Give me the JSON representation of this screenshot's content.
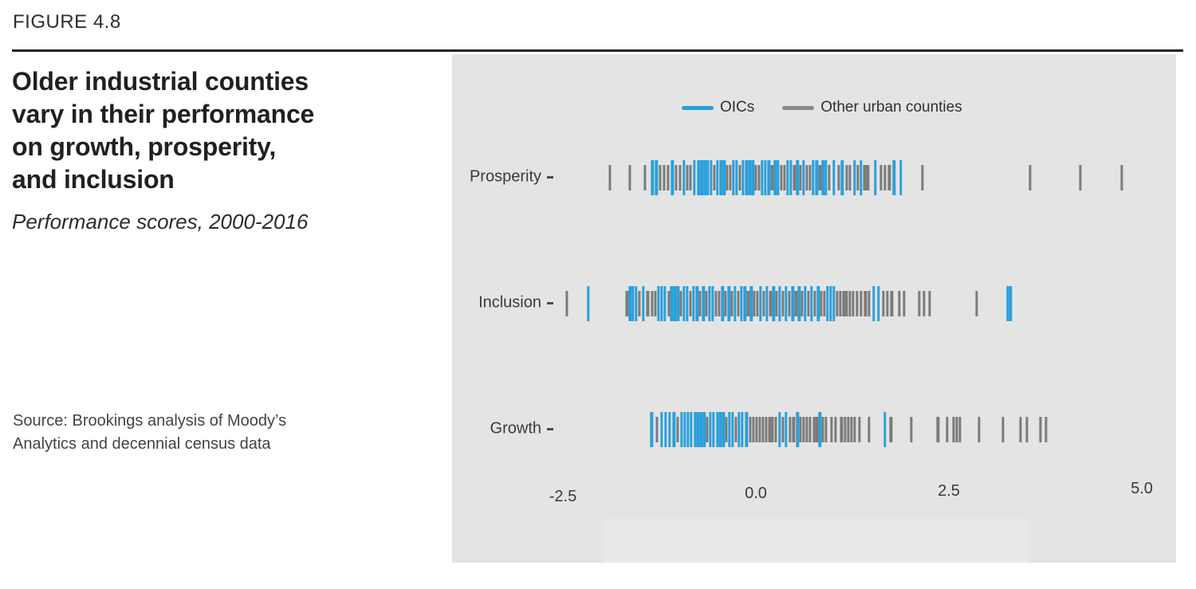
{
  "figure_label": "FIGURE 4.8",
  "title_lines": [
    "Older industrial counties",
    "vary in their performance",
    "on growth, prosperity,",
    "and inclusion"
  ],
  "subtitle": "Performance scores, 2000-2016",
  "source_lines": [
    "Source: Brookings analysis of Moody’s",
    "Analytics and decennial census data"
  ],
  "colors": {
    "oic_blue": "#2aa0db",
    "other_gray": "#7b7b7b",
    "panel_background": "#e4e4e4",
    "rule_black": "#232323"
  },
  "legend": {
    "items": [
      {
        "label": "OICs",
        "color_key": "oic_blue"
      },
      {
        "label": "Other urban counties",
        "color_key": "other_gray"
      }
    ]
  },
  "chart_data": {
    "type": "scatter",
    "subtype": "rug-strip-plot",
    "title": "Older industrial counties vary in their performance on growth, prosperity, and inclusion",
    "subtitle": "Performance scores, 2000-2016",
    "legend_entries": [
      "OICs",
      "Other urban counties"
    ],
    "legend_position": "top-center",
    "grid": false,
    "x_axis": {
      "label": "",
      "tick_labels": [
        "-2.5",
        "0.0",
        "2.5",
        "5.0"
      ],
      "tick_values": [
        -2.5,
        0.0,
        2.5,
        5.0
      ],
      "range": [
        -3.9,
        5.4
      ]
    },
    "points_format": "[performance_score, category] where 'o' = OIC (blue), 'g' = other urban county (gray)",
    "rows": [
      {
        "label": "Prosperity",
        "points": [
          [
            -1.89,
            "g"
          ],
          [
            -1.63,
            "g"
          ],
          [
            -1.44,
            "g"
          ],
          [
            -1.34,
            "o"
          ],
          [
            -1.29,
            "o"
          ],
          [
            -1.24,
            "g"
          ],
          [
            -1.19,
            "g"
          ],
          [
            -1.14,
            "g"
          ],
          [
            -1.08,
            "o"
          ],
          [
            -1.03,
            "g"
          ],
          [
            -0.98,
            "g"
          ],
          [
            -0.93,
            "o"
          ],
          [
            -0.89,
            "g"
          ],
          [
            -0.85,
            "g"
          ],
          [
            -0.8,
            "o"
          ],
          [
            -0.74,
            "o"
          ],
          [
            -0.7,
            "o"
          ],
          [
            -0.66,
            "o"
          ],
          [
            -0.62,
            "o"
          ],
          [
            -0.58,
            "o"
          ],
          [
            -0.54,
            "g"
          ],
          [
            -0.5,
            "o"
          ],
          [
            -0.45,
            "o"
          ],
          [
            -0.41,
            "o"
          ],
          [
            -0.37,
            "g"
          ],
          [
            -0.33,
            "g"
          ],
          [
            -0.29,
            "o"
          ],
          [
            -0.25,
            "o"
          ],
          [
            -0.21,
            "g"
          ],
          [
            -0.17,
            "o"
          ],
          [
            -0.12,
            "o"
          ],
          [
            -0.08,
            "o"
          ],
          [
            -0.04,
            "o"
          ],
          [
            0.0,
            "g"
          ],
          [
            0.04,
            "g"
          ],
          [
            0.08,
            "o"
          ],
          [
            0.12,
            "o"
          ],
          [
            0.17,
            "o"
          ],
          [
            0.21,
            "g"
          ],
          [
            0.25,
            "o"
          ],
          [
            0.29,
            "o"
          ],
          [
            0.33,
            "g"
          ],
          [
            0.37,
            "g"
          ],
          [
            0.41,
            "o"
          ],
          [
            0.45,
            "o"
          ],
          [
            0.5,
            "g"
          ],
          [
            0.54,
            "o"
          ],
          [
            0.58,
            "g"
          ],
          [
            0.62,
            "o"
          ],
          [
            0.66,
            "g"
          ],
          [
            0.7,
            "g"
          ],
          [
            0.74,
            "o"
          ],
          [
            0.79,
            "o"
          ],
          [
            0.83,
            "g"
          ],
          [
            0.87,
            "o"
          ],
          [
            0.91,
            "o"
          ],
          [
            0.95,
            "g"
          ],
          [
            1.01,
            "o"
          ],
          [
            1.07,
            "g"
          ],
          [
            1.12,
            "o"
          ],
          [
            1.18,
            "g"
          ],
          [
            1.22,
            "g"
          ],
          [
            1.28,
            "o"
          ],
          [
            1.32,
            "g"
          ],
          [
            1.36,
            "o"
          ],
          [
            1.41,
            "g"
          ],
          [
            1.45,
            "g"
          ],
          [
            1.55,
            "o"
          ],
          [
            1.62,
            "g"
          ],
          [
            1.67,
            "g"
          ],
          [
            1.73,
            "g"
          ],
          [
            1.79,
            "o"
          ],
          [
            1.88,
            "o"
          ],
          [
            2.16,
            "g"
          ],
          [
            3.55,
            "g"
          ],
          [
            4.2,
            "g"
          ],
          [
            4.74,
            "g"
          ]
        ]
      },
      {
        "label": "Inclusion",
        "points": [
          [
            -2.45,
            "g"
          ],
          [
            -2.17,
            "o"
          ],
          [
            -1.67,
            "g"
          ],
          [
            -1.63,
            "o"
          ],
          [
            -1.59,
            "o"
          ],
          [
            -1.55,
            "o"
          ],
          [
            -1.51,
            "g"
          ],
          [
            -1.46,
            "o"
          ],
          [
            -1.4,
            "g"
          ],
          [
            -1.34,
            "g"
          ],
          [
            -1.3,
            "g"
          ],
          [
            -1.26,
            "o"
          ],
          [
            -1.22,
            "o"
          ],
          [
            -1.18,
            "o"
          ],
          [
            -1.13,
            "g"
          ],
          [
            -1.09,
            "o"
          ],
          [
            -1.05,
            "o"
          ],
          [
            -1.01,
            "o"
          ],
          [
            -0.97,
            "g"
          ],
          [
            -0.93,
            "o"
          ],
          [
            -0.89,
            "o"
          ],
          [
            -0.85,
            "g"
          ],
          [
            -0.81,
            "o"
          ],
          [
            -0.76,
            "o"
          ],
          [
            -0.72,
            "g"
          ],
          [
            -0.68,
            "o"
          ],
          [
            -0.64,
            "g"
          ],
          [
            -0.6,
            "o"
          ],
          [
            -0.56,
            "o"
          ],
          [
            -0.52,
            "g"
          ],
          [
            -0.48,
            "g"
          ],
          [
            -0.43,
            "o"
          ],
          [
            -0.39,
            "g"
          ],
          [
            -0.35,
            "o"
          ],
          [
            -0.31,
            "g"
          ],
          [
            -0.27,
            "o"
          ],
          [
            -0.23,
            "g"
          ],
          [
            -0.19,
            "o"
          ],
          [
            -0.14,
            "o"
          ],
          [
            -0.1,
            "g"
          ],
          [
            -0.06,
            "o"
          ],
          [
            -0.02,
            "g"
          ],
          [
            0.02,
            "g"
          ],
          [
            0.06,
            "o"
          ],
          [
            0.1,
            "g"
          ],
          [
            0.14,
            "o"
          ],
          [
            0.19,
            "g"
          ],
          [
            0.23,
            "o"
          ],
          [
            0.27,
            "g"
          ],
          [
            0.31,
            "o"
          ],
          [
            0.35,
            "g"
          ],
          [
            0.39,
            "o"
          ],
          [
            0.43,
            "g"
          ],
          [
            0.48,
            "o"
          ],
          [
            0.52,
            "g"
          ],
          [
            0.56,
            "o"
          ],
          [
            0.6,
            "g"
          ],
          [
            0.64,
            "o"
          ],
          [
            0.68,
            "g"
          ],
          [
            0.72,
            "o"
          ],
          [
            0.76,
            "g"
          ],
          [
            0.81,
            "o"
          ],
          [
            0.85,
            "g"
          ],
          [
            0.89,
            "g"
          ],
          [
            0.93,
            "o"
          ],
          [
            0.97,
            "o"
          ],
          [
            1.01,
            "o"
          ],
          [
            1.05,
            "g"
          ],
          [
            1.09,
            "g"
          ],
          [
            1.14,
            "g"
          ],
          [
            1.18,
            "g"
          ],
          [
            1.22,
            "g"
          ],
          [
            1.26,
            "g"
          ],
          [
            1.31,
            "g"
          ],
          [
            1.36,
            "g"
          ],
          [
            1.42,
            "g"
          ],
          [
            1.47,
            "g"
          ],
          [
            1.53,
            "o"
          ],
          [
            1.59,
            "o"
          ],
          [
            1.65,
            "g"
          ],
          [
            1.7,
            "g"
          ],
          [
            1.76,
            "g"
          ],
          [
            1.86,
            "g"
          ],
          [
            1.92,
            "g"
          ],
          [
            2.12,
            "g"
          ],
          [
            2.18,
            "g"
          ],
          [
            2.25,
            "g"
          ],
          [
            2.86,
            "g"
          ],
          [
            3.26,
            "o"
          ],
          [
            3.3,
            "o"
          ]
        ]
      },
      {
        "label": "Growth",
        "points": [
          [
            -1.35,
            "o"
          ],
          [
            -1.28,
            "g"
          ],
          [
            -1.22,
            "o"
          ],
          [
            -1.17,
            "o"
          ],
          [
            -1.12,
            "o"
          ],
          [
            -1.06,
            "o"
          ],
          [
            -1.01,
            "g"
          ],
          [
            -0.96,
            "o"
          ],
          [
            -0.92,
            "o"
          ],
          [
            -0.88,
            "o"
          ],
          [
            -0.84,
            "o"
          ],
          [
            -0.79,
            "o"
          ],
          [
            -0.75,
            "o"
          ],
          [
            -0.71,
            "o"
          ],
          [
            -0.67,
            "o"
          ],
          [
            -0.63,
            "g"
          ],
          [
            -0.59,
            "o"
          ],
          [
            -0.55,
            "o"
          ],
          [
            -0.5,
            "o"
          ],
          [
            -0.46,
            "o"
          ],
          [
            -0.42,
            "o"
          ],
          [
            -0.38,
            "g"
          ],
          [
            -0.34,
            "o"
          ],
          [
            -0.3,
            "o"
          ],
          [
            -0.26,
            "g"
          ],
          [
            -0.22,
            "o"
          ],
          [
            -0.18,
            "o"
          ],
          [
            -0.12,
            "o"
          ],
          [
            -0.07,
            "g"
          ],
          [
            -0.03,
            "g"
          ],
          [
            0.01,
            "g"
          ],
          [
            0.05,
            "g"
          ],
          [
            0.09,
            "g"
          ],
          [
            0.13,
            "g"
          ],
          [
            0.18,
            "g"
          ],
          [
            0.22,
            "g"
          ],
          [
            0.26,
            "g"
          ],
          [
            0.31,
            "o"
          ],
          [
            0.35,
            "g"
          ],
          [
            0.39,
            "o"
          ],
          [
            0.44,
            "g"
          ],
          [
            0.49,
            "g"
          ],
          [
            0.54,
            "o"
          ],
          [
            0.58,
            "g"
          ],
          [
            0.62,
            "g"
          ],
          [
            0.66,
            "g"
          ],
          [
            0.7,
            "g"
          ],
          [
            0.75,
            "g"
          ],
          [
            0.79,
            "g"
          ],
          [
            0.83,
            "o"
          ],
          [
            0.87,
            "g"
          ],
          [
            0.91,
            "g"
          ],
          [
            0.98,
            "g"
          ],
          [
            1.03,
            "g"
          ],
          [
            1.11,
            "g"
          ],
          [
            1.16,
            "g"
          ],
          [
            1.2,
            "g"
          ],
          [
            1.24,
            "g"
          ],
          [
            1.28,
            "g"
          ],
          [
            1.34,
            "g"
          ],
          [
            1.47,
            "g"
          ],
          [
            1.67,
            "o"
          ],
          [
            1.75,
            "g"
          ],
          [
            2.01,
            "g"
          ],
          [
            2.36,
            "g"
          ],
          [
            2.48,
            "g"
          ],
          [
            2.56,
            "g"
          ],
          [
            2.6,
            "g"
          ],
          [
            2.64,
            "g"
          ],
          [
            2.89,
            "g"
          ],
          [
            3.2,
            "g"
          ],
          [
            3.43,
            "g"
          ],
          [
            3.51,
            "g"
          ],
          [
            3.69,
            "g"
          ],
          [
            3.76,
            "g"
          ]
        ]
      }
    ]
  }
}
